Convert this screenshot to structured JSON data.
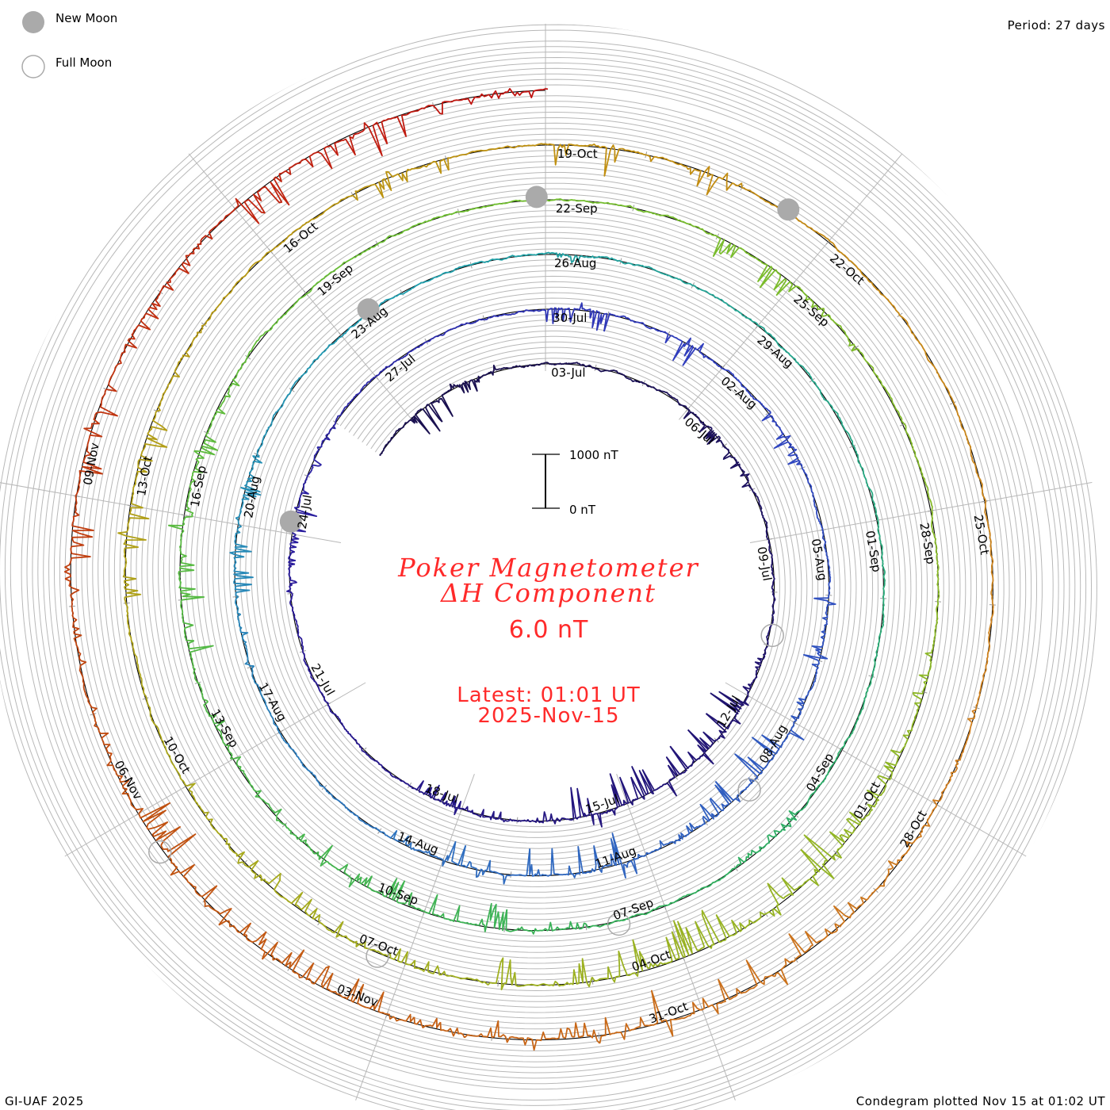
{
  "header": {
    "period_label": "Period: 27 days"
  },
  "legend": {
    "new_moon_label": "New Moon",
    "full_moon_label": "Full Moon",
    "moon_color": "#aaaaaa"
  },
  "center": {
    "title_line1": "Poker Magnetometer",
    "title_line2": "ΔH Component",
    "current_value": "6.0 nT",
    "latest_line1": "Latest: 01:01 UT",
    "latest_line2": "2025-Nov-15",
    "scale_top_label": "1000 nT",
    "scale_bottom_label": "0 nT",
    "text_color": "#ff2a2a"
  },
  "footer": {
    "credit": "GI-UAF 2025",
    "plotted": "Condegram plotted Nov 15 at 01:02 UT"
  },
  "chart_data": {
    "type": "line",
    "subtype": "condegram-spiral",
    "title": "Poker Magnetometer ΔH Component",
    "period_days": 27,
    "scale_nT": 1000,
    "units": "nT",
    "date_labels_every_days": 3,
    "date_labels": [
      "03-Jul",
      "06-Jul",
      "09-Jul",
      "12-Jul",
      "15-Jul",
      "18-Jul",
      "21-Jul",
      "24-Jul",
      "27-Jul",
      "30-Jul",
      "02-Aug",
      "05-Aug",
      "08-Aug",
      "11-Aug",
      "14-Aug",
      "17-Aug",
      "20-Aug",
      "23-Aug",
      "26-Aug",
      "29-Aug",
      "01-Sep",
      "04-Sep",
      "07-Sep",
      "10-Sep",
      "13-Sep",
      "16-Sep",
      "19-Sep",
      "22-Sep",
      "25-Sep",
      "28-Sep",
      "01-Oct",
      "04-Oct",
      "07-Oct",
      "10-Oct",
      "13-Oct",
      "16-Oct",
      "19-Oct",
      "22-Oct",
      "25-Oct",
      "28-Oct",
      "31-Oct",
      "03-Nov",
      "06-Nov",
      "09-Nov"
    ],
    "trace_start_day": -4,
    "trace_end_day": 135.04,
    "daily_peak_dH_nT": [
      -80,
      -500,
      -300,
      -80,
      -100,
      -80,
      -100,
      -300,
      -200,
      -100,
      -80,
      -100,
      -150,
      -800,
      -700,
      -600,
      -700,
      -200,
      -150,
      -300,
      -100,
      -80,
      -100,
      -100,
      -150,
      -400,
      -200,
      -100,
      -80,
      -100,
      -100,
      -400,
      -100,
      -400,
      -100,
      -300,
      -100,
      -100,
      -300,
      -150,
      -600,
      -500,
      -200,
      -600,
      -500,
      -400,
      -200,
      -100,
      -80,
      -100,
      -150,
      -400,
      -300,
      -100,
      -80,
      -80,
      -100,
      -80,
      -150,
      -100,
      -80,
      -80,
      -100,
      -100,
      -80,
      -80,
      -80,
      -100,
      -150,
      -100,
      -100,
      -150,
      -500,
      -400,
      -300,
      -150,
      -200,
      -500,
      -500,
      -300,
      -150,
      -100,
      -80,
      -80,
      -80,
      -80,
      -100,
      -500,
      -200,
      -100,
      -100,
      -100,
      -150,
      -200,
      -400,
      -800,
      -700,
      -600,
      -500,
      -200,
      -300,
      -300,
      -150,
      -100,
      -100,
      -400,
      -400,
      -150,
      -100,
      -100,
      -300,
      -100,
      -600,
      -400,
      -100,
      -80,
      -80,
      -80,
      -100,
      -100,
      -150,
      -200,
      -500,
      -900,
      -700,
      -400,
      -200,
      -500,
      -300,
      -700,
      -200,
      -150,
      -400,
      -500,
      -300,
      -200,
      -700,
      -600,
      -200,
      -80
    ],
    "new_moon_days": [
      21.2,
      51.5,
      80.9,
      110.5
    ],
    "full_moon_days": [
      7.8,
      37.2,
      66.6,
      96.3,
      125.6
    ],
    "color_stops": [
      {
        "day": 0,
        "color": "#1a1050"
      },
      {
        "day": 20,
        "color": "#2a1a9a"
      },
      {
        "day": 30,
        "color": "#3040c0"
      },
      {
        "day": 42,
        "color": "#3070c0"
      },
      {
        "day": 52,
        "color": "#20a0b0"
      },
      {
        "day": 65,
        "color": "#30b060"
      },
      {
        "day": 80,
        "color": "#70c030"
      },
      {
        "day": 95,
        "color": "#a0b020"
      },
      {
        "day": 108,
        "color": "#c09010"
      },
      {
        "day": 116,
        "color": "#d08020"
      },
      {
        "day": 126,
        "color": "#c05010"
      },
      {
        "day": 135,
        "color": "#c01010"
      }
    ]
  }
}
